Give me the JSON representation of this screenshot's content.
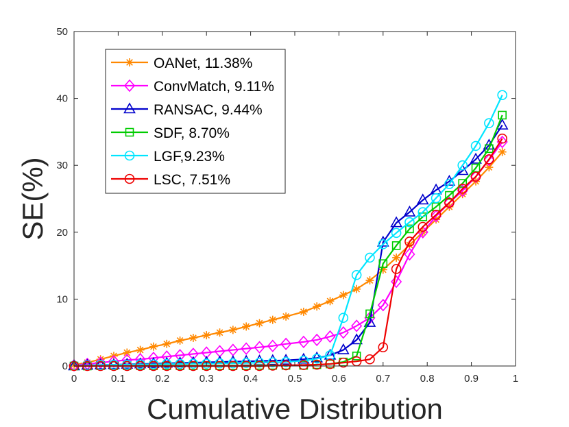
{
  "chart_data": {
    "type": "line",
    "xlabel": "Cumulative Distribution",
    "ylabel": "SE(%)",
    "xlim": [
      0,
      1
    ],
    "ylim": [
      0,
      50
    ],
    "xticks": [
      "0",
      "0.1",
      "0.2",
      "0.3",
      "0.4",
      "0.5",
      "0.6",
      "0.7",
      "0.8",
      "0.9",
      "1"
    ],
    "yticks": [
      "0",
      "10",
      "20",
      "30",
      "40",
      "50"
    ],
    "grid": false,
    "legend_position": "top-left",
    "x": [
      0,
      0.03,
      0.06,
      0.09,
      0.12,
      0.15,
      0.18,
      0.21,
      0.24,
      0.27,
      0.3,
      0.33,
      0.36,
      0.39,
      0.42,
      0.45,
      0.48,
      0.52,
      0.55,
      0.58,
      0.61,
      0.64,
      0.67,
      0.7,
      0.73,
      0.76,
      0.79,
      0.82,
      0.85,
      0.88,
      0.91,
      0.94,
      0.97
    ],
    "series": [
      {
        "name": "OANet, 11.38%",
        "color": "#ff8800",
        "marker": "asterisk",
        "values": [
          0.2,
          0.5,
          1.0,
          1.5,
          2.0,
          2.4,
          2.9,
          3.3,
          3.8,
          4.2,
          4.6,
          5.0,
          5.4,
          5.9,
          6.4,
          6.9,
          7.4,
          8.1,
          8.9,
          9.7,
          10.6,
          11.5,
          12.8,
          14.4,
          16.2,
          18.1,
          20.0,
          21.9,
          23.8,
          25.7,
          27.6,
          29.7,
          32.0
        ]
      },
      {
        "name": "ConvMatch, 9.11%",
        "color": "#ff00ff",
        "marker": "diamond",
        "values": [
          0.1,
          0.3,
          0.5,
          0.7,
          0.9,
          1.0,
          1.2,
          1.4,
          1.6,
          1.8,
          2.0,
          2.2,
          2.4,
          2.6,
          2.8,
          3.0,
          3.3,
          3.6,
          3.9,
          4.4,
          5.0,
          6.0,
          7.2,
          9.1,
          12.6,
          16.7,
          20.0,
          22.4,
          24.4,
          26.2,
          28.3,
          30.8,
          33.5
        ]
      },
      {
        "name": "RANSAC, 9.44%",
        "color": "#0000cc",
        "marker": "triangle",
        "values": [
          0.0,
          0.1,
          0.15,
          0.2,
          0.25,
          0.3,
          0.35,
          0.4,
          0.45,
          0.5,
          0.55,
          0.6,
          0.65,
          0.7,
          0.75,
          0.8,
          0.85,
          1.0,
          1.2,
          1.6,
          2.4,
          3.9,
          6.5,
          18.5,
          21.4,
          23.0,
          24.8,
          26.3,
          27.6,
          29.2,
          30.9,
          33.0,
          36.0
        ]
      },
      {
        "name": "SDF, 8.70%",
        "color": "#00cc00",
        "marker": "square",
        "values": [
          0.0,
          0.0,
          0.05,
          0.05,
          0.05,
          0.05,
          0.05,
          0.05,
          0.05,
          0.05,
          0.05,
          0.05,
          0.05,
          0.05,
          0.1,
          0.1,
          0.1,
          0.1,
          0.2,
          0.3,
          0.6,
          1.5,
          7.8,
          15.3,
          18.0,
          20.5,
          22.3,
          23.8,
          25.5,
          27.3,
          29.6,
          32.5,
          37.5
        ]
      },
      {
        "name": "LGF,9.23%",
        "color": "#00e5ff",
        "marker": "circle",
        "values": [
          0.05,
          0.1,
          0.15,
          0.2,
          0.2,
          0.25,
          0.25,
          0.3,
          0.3,
          0.35,
          0.35,
          0.4,
          0.4,
          0.45,
          0.5,
          0.55,
          0.6,
          0.8,
          1.1,
          1.6,
          7.2,
          13.6,
          16.2,
          18.2,
          19.9,
          21.5,
          23.0,
          25.1,
          27.2,
          30.0,
          32.9,
          36.3,
          40.5
        ]
      },
      {
        "name": "LSC, 7.51%",
        "color": "#ee0000",
        "marker": "circle",
        "values": [
          0.0,
          0.0,
          0.0,
          0.0,
          0.0,
          0.0,
          0.0,
          0.0,
          0.0,
          0.0,
          0.0,
          0.0,
          0.0,
          0.0,
          0.0,
          0.05,
          0.1,
          0.15,
          0.2,
          0.3,
          0.5,
          0.7,
          1.0,
          2.8,
          14.5,
          18.6,
          20.8,
          22.6,
          24.4,
          26.5,
          28.3,
          30.9,
          34.0
        ]
      }
    ]
  }
}
